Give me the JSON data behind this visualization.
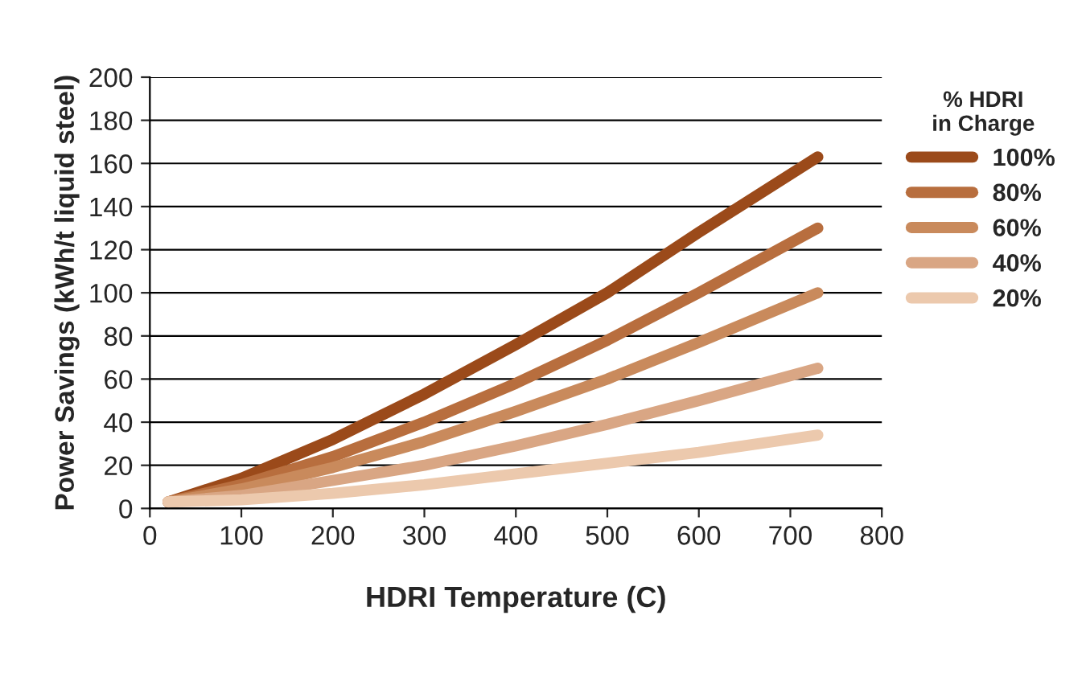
{
  "chart_data": {
    "type": "line",
    "xlabel": "HDRI Temperature (C)",
    "ylabel": "Power Savings (kWh/t liquid steel)",
    "legend_title": "% HDRI\nin Charge",
    "x": [
      20,
      100,
      200,
      300,
      400,
      500,
      600,
      730
    ],
    "series": [
      {
        "name": "100%",
        "color": "#9b4a1a",
        "values": [
          3,
          14,
          32,
          53,
          76,
          100,
          128,
          163
        ]
      },
      {
        "name": "80%",
        "color": "#b86e3e",
        "values": [
          3,
          11,
          24,
          40,
          58,
          78,
          100,
          130
        ]
      },
      {
        "name": "60%",
        "color": "#c98a5c",
        "values": [
          3,
          9,
          19,
          31,
          45,
          60,
          77,
          100
        ]
      },
      {
        "name": "40%",
        "color": "#d9a684",
        "values": [
          3,
          6,
          13,
          20,
          29,
          39,
          50,
          65
        ]
      },
      {
        "name": "20%",
        "color": "#ecc9ad",
        "values": [
          3,
          4,
          7,
          11,
          16,
          21,
          26,
          34
        ]
      }
    ],
    "xlim": [
      0,
      800
    ],
    "xticks": [
      0,
      100,
      200,
      300,
      400,
      500,
      600,
      700,
      800
    ],
    "ylim": [
      0,
      200
    ],
    "yticks": [
      0,
      20,
      40,
      60,
      80,
      100,
      120,
      140,
      160,
      180,
      200
    ],
    "grid": "y",
    "legend": "top right",
    "marker": "none",
    "line_style": "solid"
  }
}
